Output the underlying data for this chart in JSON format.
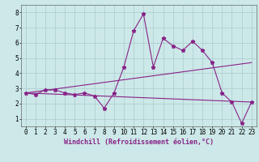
{
  "xlabel": "Windchill (Refroidissement éolien,°C)",
  "ylabel": "",
  "background_color": "#cce8e8",
  "line_color": "#882288",
  "xlim": [
    -0.5,
    23.5
  ],
  "ylim": [
    0.5,
    8.5
  ],
  "yticks": [
    1,
    2,
    3,
    4,
    5,
    6,
    7,
    8
  ],
  "xticks": [
    0,
    1,
    2,
    3,
    4,
    5,
    6,
    7,
    8,
    9,
    10,
    11,
    12,
    13,
    14,
    15,
    16,
    17,
    18,
    19,
    20,
    21,
    22,
    23
  ],
  "series1_x": [
    0,
    1,
    2,
    3,
    4,
    5,
    6,
    7,
    8,
    9,
    10,
    11,
    12,
    13,
    14,
    15,
    16,
    17,
    18,
    19,
    20,
    21,
    22,
    23
  ],
  "series1_y": [
    2.7,
    2.6,
    2.9,
    2.9,
    2.7,
    2.6,
    2.7,
    2.5,
    1.7,
    2.7,
    4.4,
    6.8,
    7.9,
    4.4,
    6.3,
    5.8,
    5.5,
    6.1,
    5.5,
    4.7,
    2.7,
    2.1,
    0.7,
    2.1
  ],
  "series2_x": [
    0,
    23
  ],
  "series2_y": [
    2.7,
    2.1
  ],
  "series3_x": [
    0,
    23
  ],
  "series3_y": [
    2.7,
    4.7
  ],
  "grid_color": "#aacccc",
  "marker": "*",
  "markersize": 3.5,
  "linewidth": 0.8,
  "xlabel_fontsize": 6.0,
  "tick_fontsize": 5.5
}
